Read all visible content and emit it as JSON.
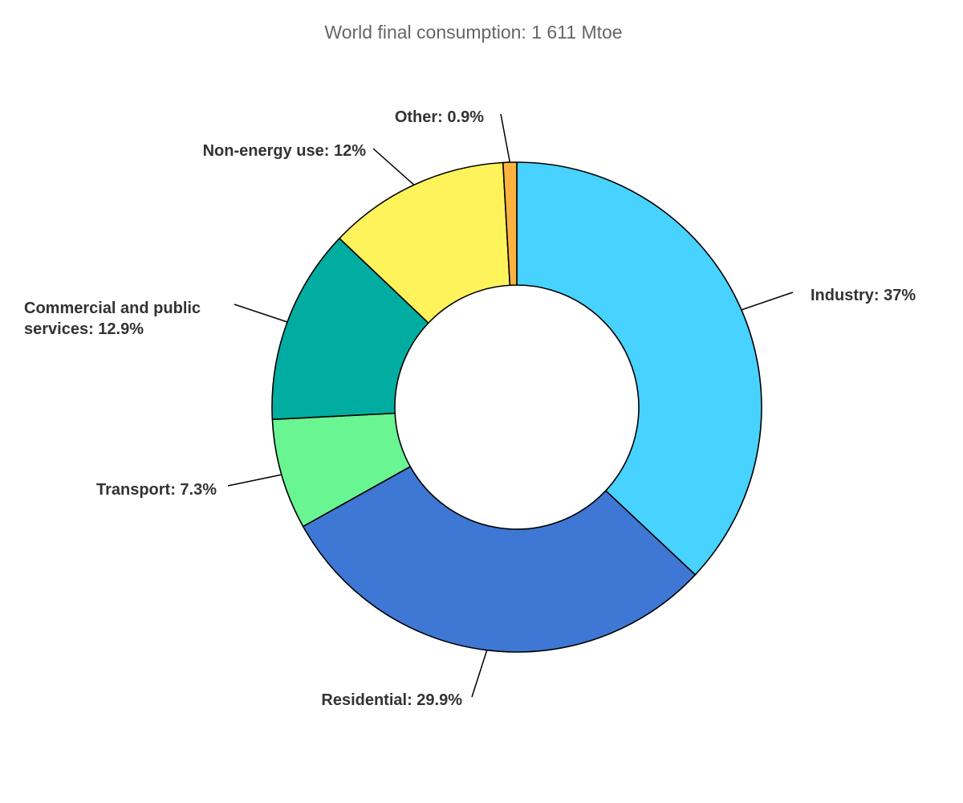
{
  "chart_data": {
    "type": "pie",
    "variant": "donut",
    "title": "World final consumption: 1 611 Mtoe",
    "slices": [
      {
        "name": "Industry",
        "value": 37,
        "label": "Industry: 37%",
        "color": "#48D2FF"
      },
      {
        "name": "Residential",
        "value": 29.9,
        "label": "Residential: 29.9%",
        "color": "#3E78D4"
      },
      {
        "name": "Transport",
        "value": 7.3,
        "label": "Transport: 7.3%",
        "color": "#6AF593"
      },
      {
        "name": "Commercial and public services",
        "value": 12.9,
        "label": "Commercial and public services: 12.9%",
        "color": "#00ADA0"
      },
      {
        "name": "Non-energy use",
        "value": 12,
        "label": "Non-energy use: 12%",
        "color": "#FFF35C"
      },
      {
        "name": "Other",
        "value": 0.9,
        "label": "Other: 0.9%",
        "color": "#FFB33F"
      }
    ],
    "legend": "none",
    "labels": "outside-with-leader-lines"
  }
}
